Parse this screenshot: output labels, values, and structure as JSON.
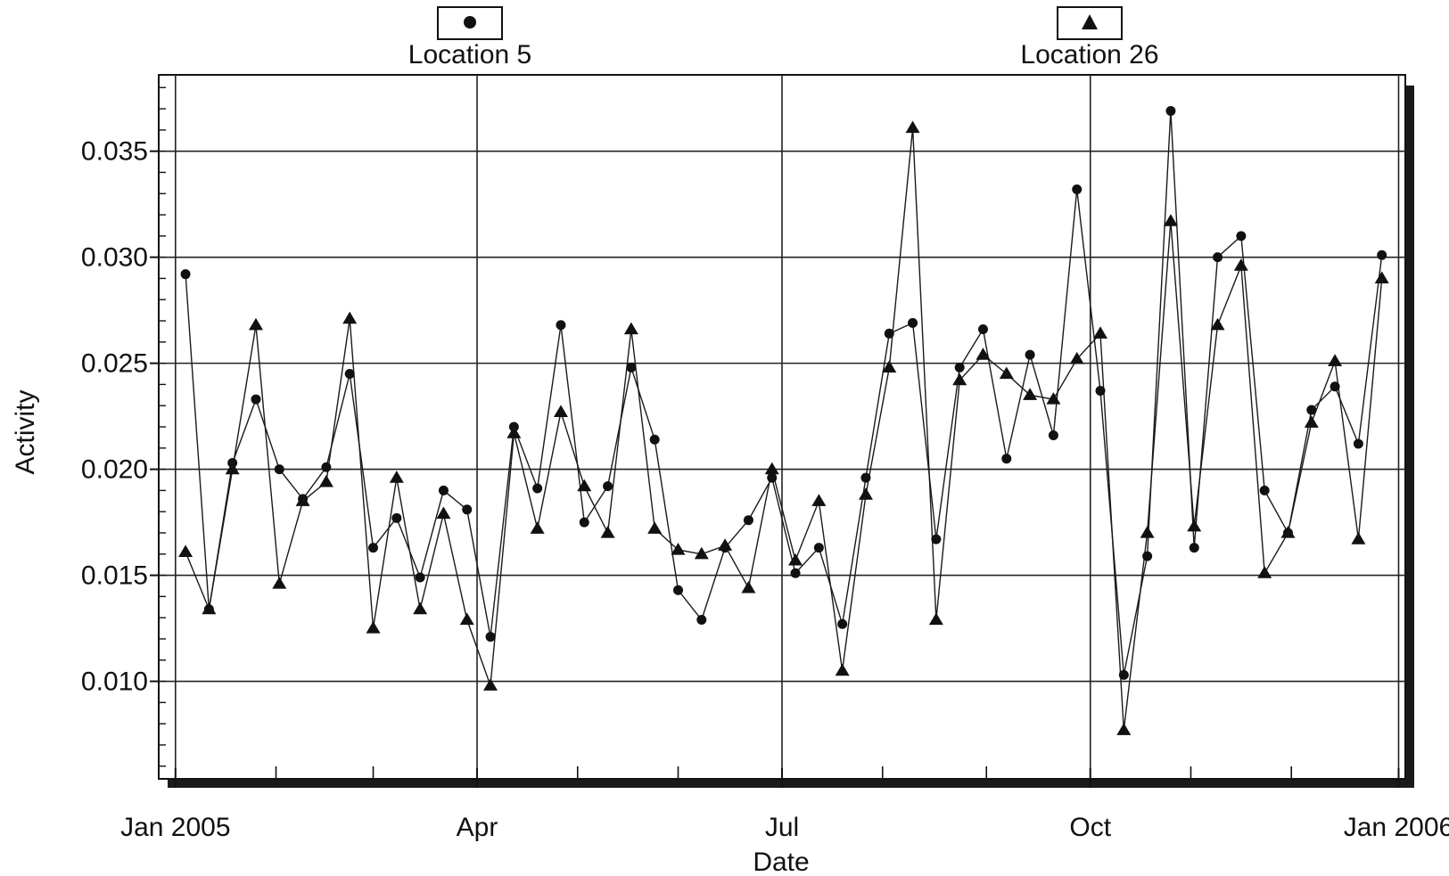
{
  "chart_data": {
    "type": "line",
    "title": "",
    "xlabel": "Date",
    "ylabel": "Activity",
    "xlim": [
      "2004-12-27",
      "2006-01-03"
    ],
    "ylim": [
      0.0054,
      0.0386
    ],
    "grid": true,
    "legend_position": "top",
    "x_ticks": [
      {
        "date": "2005-01-01",
        "label": "Jan 2005"
      },
      {
        "date": "2005-04-01",
        "label": "Apr"
      },
      {
        "date": "2005-07-01",
        "label": "Jul"
      },
      {
        "date": "2005-10-01",
        "label": "Oct"
      },
      {
        "date": "2006-01-01",
        "label": "Jan 2006"
      }
    ],
    "minor_x_ticks": [
      "2005-01-31",
      "2005-03-01",
      "2005-05-01",
      "2005-05-31",
      "2005-07-31",
      "2005-08-31",
      "2005-10-31",
      "2005-11-30"
    ],
    "y_ticks": [
      {
        "value": 0.035,
        "label": "0.035"
      },
      {
        "value": 0.03,
        "label": "0.030"
      },
      {
        "value": 0.025,
        "label": "0.025"
      },
      {
        "value": 0.02,
        "label": "0.020"
      },
      {
        "value": 0.015,
        "label": "0.015"
      },
      {
        "value": 0.01,
        "label": "0.010"
      }
    ],
    "series": [
      {
        "name": "Location 5",
        "marker": "circle",
        "points": [
          [
            "2005-01-04",
            0.0292
          ],
          [
            "2005-01-11",
            0.0134
          ],
          [
            "2005-01-18",
            0.0203
          ],
          [
            "2005-01-25",
            0.0233
          ],
          [
            "2005-02-01",
            0.02
          ],
          [
            "2005-02-08",
            0.0186
          ],
          [
            "2005-02-15",
            0.0201
          ],
          [
            "2005-02-22",
            0.0245
          ],
          [
            "2005-03-01",
            0.0163
          ],
          [
            "2005-03-08",
            0.0177
          ],
          [
            "2005-03-15",
            0.0149
          ],
          [
            "2005-03-22",
            0.019
          ],
          [
            "2005-03-29",
            0.0181
          ],
          [
            "2005-04-05",
            0.0121
          ],
          [
            "2005-04-12",
            0.022
          ],
          [
            "2005-04-19",
            0.0191
          ],
          [
            "2005-04-26",
            0.0268
          ],
          [
            "2005-05-03",
            0.0175
          ],
          [
            "2005-05-10",
            0.0192
          ],
          [
            "2005-05-17",
            0.0248
          ],
          [
            "2005-05-24",
            0.0214
          ],
          [
            "2005-05-31",
            0.0143
          ],
          [
            "2005-06-07",
            0.0129
          ],
          [
            "2005-06-14",
            0.0163
          ],
          [
            "2005-06-21",
            0.0176
          ],
          [
            "2005-06-28",
            0.0196
          ],
          [
            "2005-07-05",
            0.0151
          ],
          [
            "2005-07-12",
            0.0163
          ],
          [
            "2005-07-19",
            0.0127
          ],
          [
            "2005-07-26",
            0.0196
          ],
          [
            "2005-08-02",
            0.0264
          ],
          [
            "2005-08-09",
            0.0269
          ],
          [
            "2005-08-16",
            0.0167
          ],
          [
            "2005-08-23",
            0.0248
          ],
          [
            "2005-08-30",
            0.0266
          ],
          [
            "2005-09-06",
            0.0205
          ],
          [
            "2005-09-13",
            0.0254
          ],
          [
            "2005-09-20",
            0.0216
          ],
          [
            "2005-09-27",
            0.0332
          ],
          [
            "2005-10-04",
            0.0237
          ],
          [
            "2005-10-11",
            0.0103
          ],
          [
            "2005-10-18",
            0.0159
          ],
          [
            "2005-10-25",
            0.0369
          ],
          [
            "2005-11-01",
            0.0163
          ],
          [
            "2005-11-08",
            0.03
          ],
          [
            "2005-11-15",
            0.031
          ],
          [
            "2005-11-22",
            0.019
          ],
          [
            "2005-11-29",
            0.017
          ],
          [
            "2005-12-06",
            0.0228
          ],
          [
            "2005-12-13",
            0.0239
          ],
          [
            "2005-12-20",
            0.0212
          ],
          [
            "2005-12-27",
            0.0301
          ]
        ]
      },
      {
        "name": "Location 26",
        "marker": "triangle",
        "points": [
          [
            "2005-01-04",
            0.0161
          ],
          [
            "2005-01-11",
            0.0134
          ],
          [
            "2005-01-18",
            0.02
          ],
          [
            "2005-01-25",
            0.0268
          ],
          [
            "2005-02-01",
            0.0146
          ],
          [
            "2005-02-08",
            0.0185
          ],
          [
            "2005-02-15",
            0.0194
          ],
          [
            "2005-02-22",
            0.0271
          ],
          [
            "2005-03-01",
            0.0125
          ],
          [
            "2005-03-08",
            0.0196
          ],
          [
            "2005-03-15",
            0.0134
          ],
          [
            "2005-03-22",
            0.0179
          ],
          [
            "2005-03-29",
            0.0129
          ],
          [
            "2005-04-05",
            0.0098
          ],
          [
            "2005-04-12",
            0.0217
          ],
          [
            "2005-04-19",
            0.0172
          ],
          [
            "2005-04-26",
            0.0227
          ],
          [
            "2005-05-03",
            0.0192
          ],
          [
            "2005-05-10",
            0.017
          ],
          [
            "2005-05-17",
            0.0266
          ],
          [
            "2005-05-24",
            0.0172
          ],
          [
            "2005-05-31",
            0.0162
          ],
          [
            "2005-06-07",
            0.016
          ],
          [
            "2005-06-14",
            0.0164
          ],
          [
            "2005-06-21",
            0.0144
          ],
          [
            "2005-06-28",
            0.02
          ],
          [
            "2005-07-05",
            0.0157
          ],
          [
            "2005-07-12",
            0.0185
          ],
          [
            "2005-07-19",
            0.0105
          ],
          [
            "2005-07-26",
            0.0188
          ],
          [
            "2005-08-02",
            0.0248
          ],
          [
            "2005-08-09",
            0.0361
          ],
          [
            "2005-08-16",
            0.0129
          ],
          [
            "2005-08-23",
            0.0242
          ],
          [
            "2005-08-30",
            0.0254
          ],
          [
            "2005-09-06",
            0.0245
          ],
          [
            "2005-09-13",
            0.0235
          ],
          [
            "2005-09-20",
            0.0233
          ],
          [
            "2005-09-27",
            0.0252
          ],
          [
            "2005-10-04",
            0.0264
          ],
          [
            "2005-10-11",
            0.0077
          ],
          [
            "2005-10-18",
            0.017
          ],
          [
            "2005-10-25",
            0.0317
          ],
          [
            "2005-11-01",
            0.0173
          ],
          [
            "2005-11-08",
            0.0268
          ],
          [
            "2005-11-15",
            0.0296
          ],
          [
            "2005-11-22",
            0.0151
          ],
          [
            "2005-11-29",
            0.017
          ],
          [
            "2005-12-06",
            0.0222
          ],
          [
            "2005-12-13",
            0.0251
          ],
          [
            "2005-12-20",
            0.0167
          ],
          [
            "2005-12-27",
            0.029
          ]
        ]
      }
    ]
  }
}
